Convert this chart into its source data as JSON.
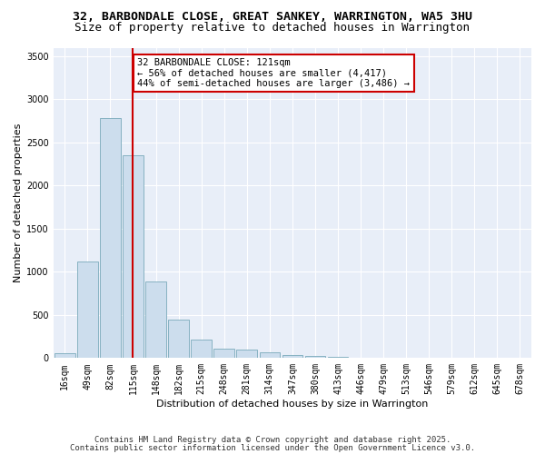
{
  "title1": "32, BARBONDALE CLOSE, GREAT SANKEY, WARRINGTON, WA5 3HU",
  "title2": "Size of property relative to detached houses in Warrington",
  "xlabel": "Distribution of detached houses by size in Warrington",
  "ylabel": "Number of detached properties",
  "categories": [
    "16sqm",
    "49sqm",
    "82sqm",
    "115sqm",
    "148sqm",
    "182sqm",
    "215sqm",
    "248sqm",
    "281sqm",
    "314sqm",
    "347sqm",
    "380sqm",
    "413sqm",
    "446sqm",
    "479sqm",
    "513sqm",
    "546sqm",
    "579sqm",
    "612sqm",
    "645sqm",
    "678sqm"
  ],
  "values": [
    55,
    1120,
    2780,
    2350,
    890,
    450,
    210,
    105,
    95,
    65,
    35,
    25,
    15,
    5,
    5,
    0,
    0,
    0,
    0,
    0,
    0
  ],
  "bar_color": "#ccdded",
  "bar_edge_color": "#7aaabb",
  "property_line_x": 3.0,
  "annotation_text": "32 BARBONDALE CLOSE: 121sqm\n← 56% of detached houses are smaller (4,417)\n44% of semi-detached houses are larger (3,486) →",
  "annotation_box_color": "#ffffff",
  "annotation_box_edge": "#cc0000",
  "line_color": "#cc0000",
  "ylim": [
    0,
    3600
  ],
  "yticks": [
    0,
    500,
    1000,
    1500,
    2000,
    2500,
    3000,
    3500
  ],
  "background_color": "#e8eef8",
  "footer1": "Contains HM Land Registry data © Crown copyright and database right 2025.",
  "footer2": "Contains public sector information licensed under the Open Government Licence v3.0.",
  "title_fontsize": 9.5,
  "subtitle_fontsize": 9,
  "axis_label_fontsize": 8,
  "tick_fontsize": 7,
  "annotation_fontsize": 7.5,
  "footer_fontsize": 6.5
}
